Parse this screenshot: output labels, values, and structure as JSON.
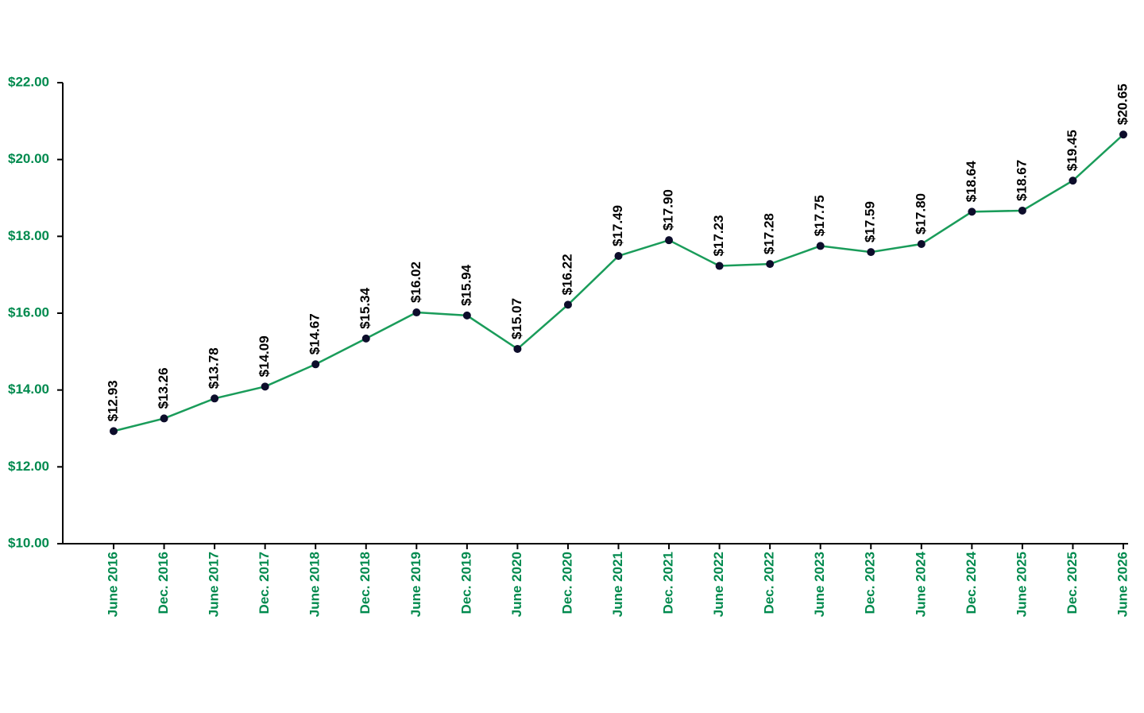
{
  "chart_data": {
    "type": "line",
    "categories": [
      "June 2016",
      "Dec. 2016",
      "June 2017",
      "Dec. 2017",
      "June 2018",
      "Dec. 2018",
      "June 2019",
      "Dec. 2019",
      "June 2020",
      "Dec. 2020",
      "June 2021",
      "Dec. 2021",
      "June 2022",
      "Dec. 2022",
      "June 2023",
      "Dec. 2023",
      "June 2024",
      "Dec. 2024",
      "June 2025",
      "Dec. 2025",
      "June 2026"
    ],
    "series": [
      {
        "color": "#1a9c5a",
        "values": [
          12.93,
          13.26,
          13.78,
          14.09,
          14.67,
          15.34,
          16.02,
          15.94,
          15.07,
          16.22,
          17.49,
          17.9,
          17.23,
          17.28,
          17.75,
          17.59,
          17.8,
          18.64,
          18.67,
          19.45,
          20.65
        ],
        "value_labels": [
          "$12.93",
          "$13.26",
          "$13.78",
          "$14.09",
          "$14.67",
          "$15.34",
          "$16.02",
          "$15.94",
          "$15.07",
          "$16.22",
          "$17.49",
          "$17.90",
          "$17.23",
          "$17.28",
          "$17.75",
          "$17.59",
          "$17.80",
          "$18.64",
          "$18.67",
          "$19.45",
          "$20.65"
        ]
      }
    ],
    "ylim": [
      10,
      22
    ],
    "yticks": [
      {
        "value": 10,
        "label": "$10.00"
      },
      {
        "value": 12,
        "label": "$12.00"
      },
      {
        "value": 14,
        "label": "$14.00"
      },
      {
        "value": 16,
        "label": "$16.00"
      },
      {
        "value": 18,
        "label": "$18.00"
      },
      {
        "value": 20,
        "label": "$20.00"
      },
      {
        "value": 22,
        "label": "$22.00"
      }
    ],
    "grid": false,
    "marker_color": "#0d0d2b",
    "axis_label_color": "#008a4e"
  }
}
